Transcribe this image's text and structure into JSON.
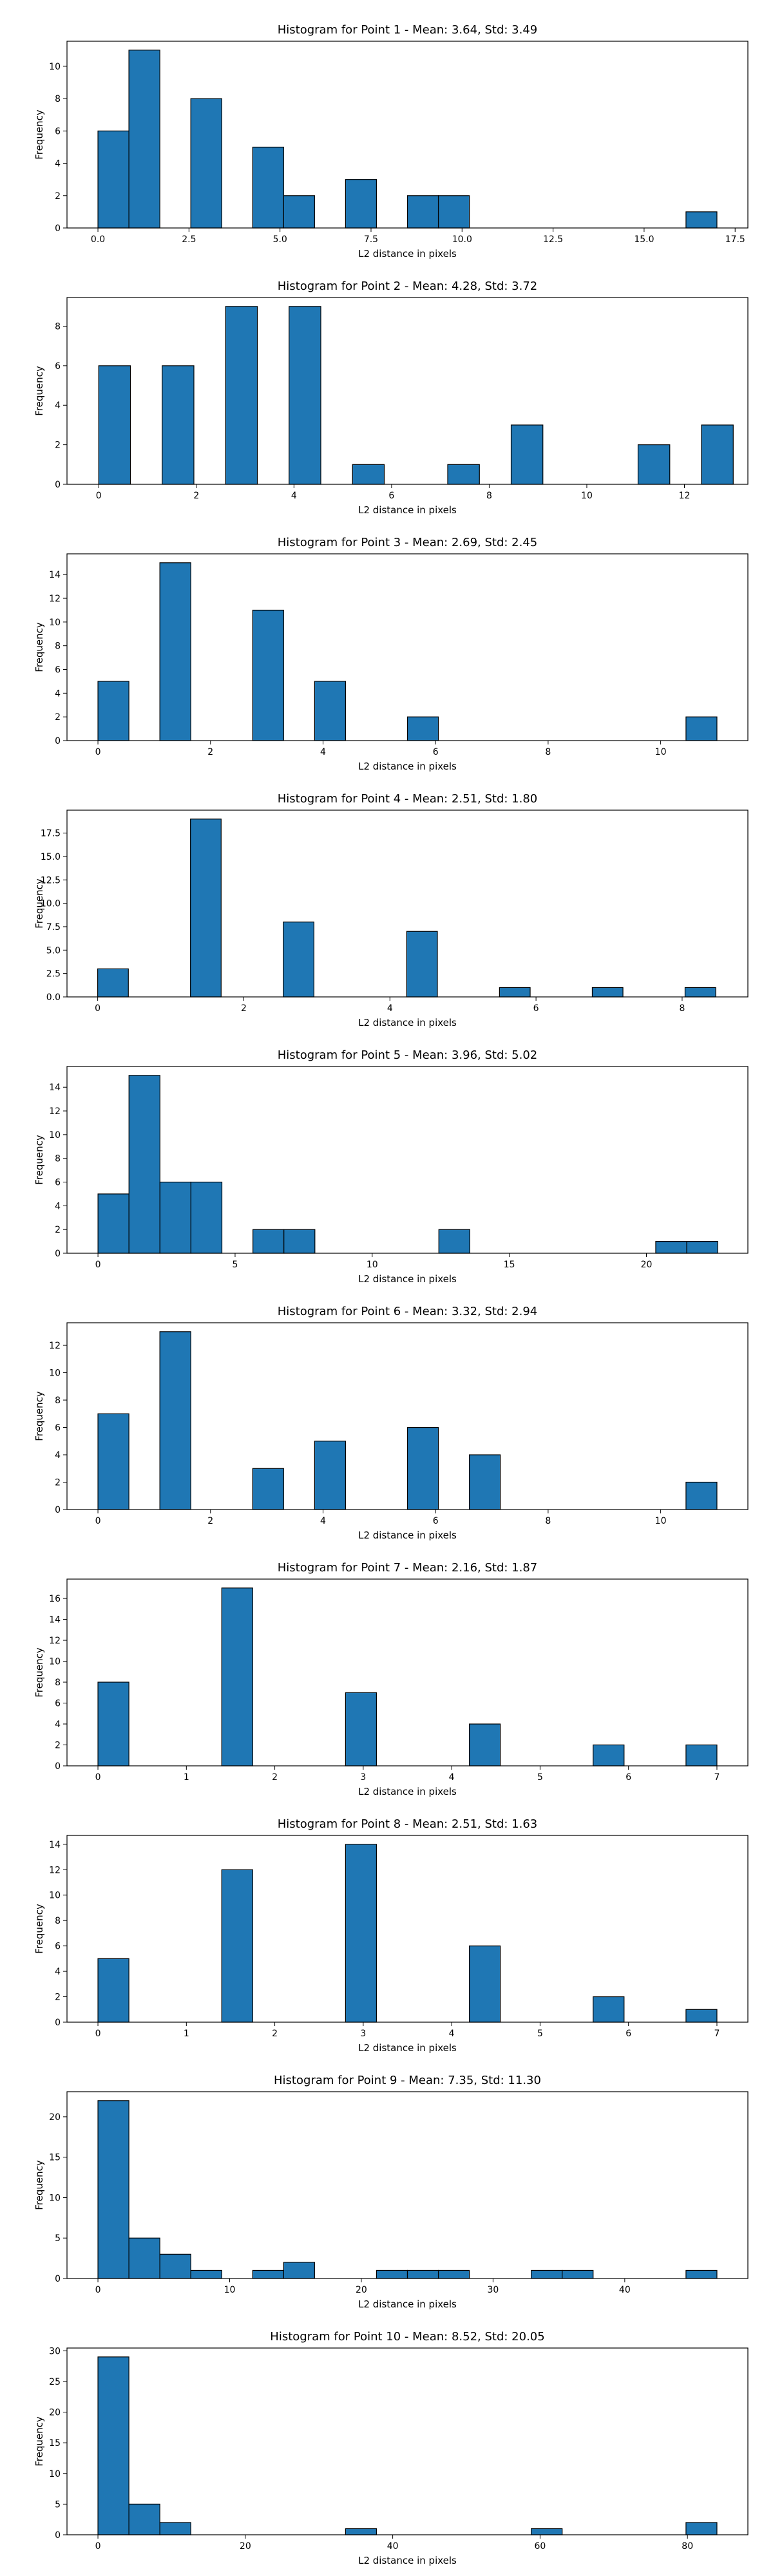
{
  "style": {
    "bar_color": "#1f77b4",
    "edge_color": "#000000",
    "background": "#ffffff"
  },
  "chart_data": [
    {
      "type": "bar",
      "title": "Histogram for Point 1 - Mean: 3.64, Std: 3.49",
      "xlabel": "L2 distance in pixels",
      "ylabel": "Frequency",
      "xlim": [
        -0.85,
        17.85
      ],
      "ylim": [
        0,
        11.55
      ],
      "xticks": [
        0,
        2.5,
        5,
        7.5,
        10,
        12.5,
        15,
        17.5
      ],
      "xtick_labels": [
        "0.0",
        "2.5",
        "5.0",
        "7.5",
        "10.0",
        "12.5",
        "15.0",
        "17.5"
      ],
      "yticks": [
        0,
        2,
        4,
        6,
        8,
        10
      ],
      "ytick_labels": [
        "0",
        "2",
        "4",
        "6",
        "8",
        "10"
      ],
      "bins": [
        {
          "x0": 0,
          "x1": 0.85,
          "count": 6
        },
        {
          "x0": 0.85,
          "x1": 1.7,
          "count": 11
        },
        {
          "x0": 2.55,
          "x1": 3.4,
          "count": 8
        },
        {
          "x0": 4.25,
          "x1": 5.1,
          "count": 5
        },
        {
          "x0": 5.1,
          "x1": 5.95,
          "count": 2
        },
        {
          "x0": 6.8,
          "x1": 7.65,
          "count": 3
        },
        {
          "x0": 8.5,
          "x1": 9.35,
          "count": 2
        },
        {
          "x0": 9.35,
          "x1": 10.2,
          "count": 2
        },
        {
          "x0": 16.15,
          "x1": 17.0,
          "count": 1
        }
      ]
    },
    {
      "type": "bar",
      "title": "Histogram for Point 2 - Mean: 4.28, Std: 3.72",
      "xlabel": "L2 distance in pixels",
      "ylabel": "Frequency",
      "xlim": [
        -0.65,
        13.3
      ],
      "ylim": [
        0,
        9.45
      ],
      "xticks": [
        0,
        2,
        4,
        6,
        8,
        10,
        12
      ],
      "xtick_labels": [
        "0",
        "2",
        "4",
        "6",
        "8",
        "10",
        "12"
      ],
      "yticks": [
        0,
        2,
        4,
        6,
        8
      ],
      "ytick_labels": [
        "0",
        "2",
        "4",
        "6",
        "8"
      ],
      "bins": [
        {
          "x0": 0,
          "x1": 0.65,
          "count": 6
        },
        {
          "x0": 1.3,
          "x1": 1.95,
          "count": 6
        },
        {
          "x0": 2.6,
          "x1": 3.25,
          "count": 9
        },
        {
          "x0": 3.9,
          "x1": 4.55,
          "count": 9
        },
        {
          "x0": 5.2,
          "x1": 5.85,
          "count": 1
        },
        {
          "x0": 7.15,
          "x1": 7.8,
          "count": 1
        },
        {
          "x0": 8.45,
          "x1": 9.1,
          "count": 3
        },
        {
          "x0": 11.05,
          "x1": 11.7,
          "count": 2
        },
        {
          "x0": 12.35,
          "x1": 13.0,
          "count": 3
        }
      ]
    },
    {
      "type": "bar",
      "title": "Histogram for Point 3 - Mean: 2.69, Std: 2.45",
      "xlabel": "L2 distance in pixels",
      "ylabel": "Frequency",
      "xlim": [
        -0.55,
        11.55
      ],
      "ylim": [
        0,
        15.75
      ],
      "xticks": [
        0,
        2,
        4,
        6,
        8,
        10
      ],
      "xtick_labels": [
        "0",
        "2",
        "4",
        "6",
        "8",
        "10"
      ],
      "yticks": [
        0,
        2,
        4,
        6,
        8,
        10,
        12,
        14
      ],
      "ytick_labels": [
        "0",
        "2",
        "4",
        "6",
        "8",
        "10",
        "12",
        "14"
      ],
      "bins": [
        {
          "x0": 0,
          "x1": 0.55,
          "count": 5
        },
        {
          "x0": 1.1,
          "x1": 1.65,
          "count": 15
        },
        {
          "x0": 2.75,
          "x1": 3.3,
          "count": 11
        },
        {
          "x0": 3.85,
          "x1": 4.4,
          "count": 5
        },
        {
          "x0": 5.5,
          "x1": 6.05,
          "count": 2
        },
        {
          "x0": 10.45,
          "x1": 11.0,
          "count": 2
        }
      ]
    },
    {
      "type": "bar",
      "title": "Histogram for Point 4 - Mean: 2.51, Std: 1.80",
      "xlabel": "L2 distance in pixels",
      "ylabel": "Frequency",
      "xlim": [
        -0.42,
        8.9
      ],
      "ylim": [
        0,
        19.95
      ],
      "xticks": [
        0,
        2,
        4,
        6,
        8
      ],
      "xtick_labels": [
        "0",
        "2",
        "4",
        "6",
        "8"
      ],
      "yticks": [
        0,
        2.5,
        5,
        7.5,
        10,
        12.5,
        15,
        17.5
      ],
      "ytick_labels": [
        "0.0",
        "2.5",
        "5.0",
        "7.5",
        "10.0",
        "12.5",
        "15.0",
        "17.5"
      ],
      "bins": [
        {
          "x0": 0,
          "x1": 0.42,
          "count": 3
        },
        {
          "x0": 1.27,
          "x1": 1.69,
          "count": 19
        },
        {
          "x0": 2.54,
          "x1": 2.96,
          "count": 8
        },
        {
          "x0": 4.23,
          "x1": 4.65,
          "count": 7
        },
        {
          "x0": 5.5,
          "x1": 5.92,
          "count": 1
        },
        {
          "x0": 6.77,
          "x1": 7.19,
          "count": 1
        },
        {
          "x0": 8.04,
          "x1": 8.46,
          "count": 1
        }
      ]
    },
    {
      "type": "bar",
      "title": "Histogram for Point 5 - Mean: 3.96, Std: 5.02",
      "xlabel": "L2 distance in pixels",
      "ylabel": "Frequency",
      "xlim": [
        -1.13,
        23.7
      ],
      "ylim": [
        0,
        15.75
      ],
      "xticks": [
        0,
        5,
        10,
        15,
        20
      ],
      "xtick_labels": [
        "0",
        "5",
        "10",
        "15",
        "20"
      ],
      "yticks": [
        0,
        2,
        4,
        6,
        8,
        10,
        12,
        14
      ],
      "ytick_labels": [
        "0",
        "2",
        "4",
        "6",
        "8",
        "10",
        "12",
        "14"
      ],
      "bins": [
        {
          "x0": 0,
          "x1": 1.13,
          "count": 5
        },
        {
          "x0": 1.13,
          "x1": 2.26,
          "count": 15
        },
        {
          "x0": 2.26,
          "x1": 3.39,
          "count": 6
        },
        {
          "x0": 3.39,
          "x1": 4.52,
          "count": 6
        },
        {
          "x0": 5.65,
          "x1": 6.78,
          "count": 2
        },
        {
          "x0": 6.78,
          "x1": 7.91,
          "count": 2
        },
        {
          "x0": 12.43,
          "x1": 13.56,
          "count": 2
        },
        {
          "x0": 20.34,
          "x1": 21.47,
          "count": 1
        },
        {
          "x0": 21.47,
          "x1": 22.6,
          "count": 1
        }
      ]
    },
    {
      "type": "bar",
      "title": "Histogram for Point 6 - Mean: 3.32, Std: 2.94",
      "xlabel": "L2 distance in pixels",
      "ylabel": "Frequency",
      "xlim": [
        -0.55,
        11.55
      ],
      "ylim": [
        0,
        13.65
      ],
      "xticks": [
        0,
        2,
        4,
        6,
        8,
        10
      ],
      "xtick_labels": [
        "0",
        "2",
        "4",
        "6",
        "8",
        "10"
      ],
      "yticks": [
        0,
        2,
        4,
        6,
        8,
        10,
        12
      ],
      "ytick_labels": [
        "0",
        "2",
        "4",
        "6",
        "8",
        "10",
        "12"
      ],
      "bins": [
        {
          "x0": 0,
          "x1": 0.55,
          "count": 7
        },
        {
          "x0": 1.1,
          "x1": 1.65,
          "count": 13
        },
        {
          "x0": 2.75,
          "x1": 3.3,
          "count": 3
        },
        {
          "x0": 3.85,
          "x1": 4.4,
          "count": 5
        },
        {
          "x0": 5.5,
          "x1": 6.05,
          "count": 6
        },
        {
          "x0": 6.6,
          "x1": 7.15,
          "count": 4
        },
        {
          "x0": 10.45,
          "x1": 11.0,
          "count": 2
        }
      ]
    },
    {
      "type": "bar",
      "title": "Histogram for Point 7 - Mean: 2.16, Std: 1.87",
      "xlabel": "L2 distance in pixels",
      "ylabel": "Frequency",
      "xlim": [
        -0.35,
        7.35
      ],
      "ylim": [
        0,
        17.85
      ],
      "xticks": [
        0,
        1,
        2,
        3,
        4,
        5,
        6,
        7
      ],
      "xtick_labels": [
        "0",
        "1",
        "2",
        "3",
        "4",
        "5",
        "6",
        "7"
      ],
      "yticks": [
        0,
        2,
        4,
        6,
        8,
        10,
        12,
        14,
        16
      ],
      "ytick_labels": [
        "0",
        "2",
        "4",
        "6",
        "8",
        "10",
        "12",
        "14",
        "16"
      ],
      "bins": [
        {
          "x0": 0,
          "x1": 0.35,
          "count": 8
        },
        {
          "x0": 1.4,
          "x1": 1.75,
          "count": 17
        },
        {
          "x0": 2.8,
          "x1": 3.15,
          "count": 7
        },
        {
          "x0": 4.2,
          "x1": 4.55,
          "count": 4
        },
        {
          "x0": 5.6,
          "x1": 5.95,
          "count": 2
        },
        {
          "x0": 6.65,
          "x1": 7.0,
          "count": 2
        }
      ]
    },
    {
      "type": "bar",
      "title": "Histogram for Point 8 - Mean: 2.51, Std: 1.63",
      "xlabel": "L2 distance in pixels",
      "ylabel": "Frequency",
      "xlim": [
        -0.35,
        7.35
      ],
      "ylim": [
        0,
        14.7
      ],
      "xticks": [
        0,
        1,
        2,
        3,
        4,
        5,
        6,
        7
      ],
      "xtick_labels": [
        "0",
        "1",
        "2",
        "3",
        "4",
        "5",
        "6",
        "7"
      ],
      "yticks": [
        0,
        2,
        4,
        6,
        8,
        10,
        12,
        14
      ],
      "ytick_labels": [
        "0",
        "2",
        "4",
        "6",
        "8",
        "10",
        "12",
        "14"
      ],
      "bins": [
        {
          "x0": 0,
          "x1": 0.35,
          "count": 5
        },
        {
          "x0": 1.4,
          "x1": 1.75,
          "count": 12
        },
        {
          "x0": 2.8,
          "x1": 3.15,
          "count": 14
        },
        {
          "x0": 4.2,
          "x1": 4.55,
          "count": 6
        },
        {
          "x0": 5.6,
          "x1": 5.95,
          "count": 2
        },
        {
          "x0": 6.65,
          "x1": 7.0,
          "count": 1
        }
      ]
    },
    {
      "type": "bar",
      "title": "Histogram for Point 9 - Mean: 7.35, Std: 11.30",
      "xlabel": "L2 distance in pixels",
      "ylabel": "Frequency",
      "xlim": [
        -2.35,
        49.35
      ],
      "ylim": [
        0,
        23.1
      ],
      "xticks": [
        0,
        10,
        20,
        30,
        40
      ],
      "xtick_labels": [
        "0",
        "10",
        "20",
        "30",
        "40"
      ],
      "yticks": [
        0,
        5,
        10,
        15,
        20
      ],
      "ytick_labels": [
        "0",
        "5",
        "10",
        "15",
        "20"
      ],
      "bins": [
        {
          "x0": 0,
          "x1": 2.35,
          "count": 22
        },
        {
          "x0": 2.35,
          "x1": 4.7,
          "count": 5
        },
        {
          "x0": 4.7,
          "x1": 7.05,
          "count": 3
        },
        {
          "x0": 7.05,
          "x1": 9.4,
          "count": 1
        },
        {
          "x0": 11.75,
          "x1": 14.1,
          "count": 1
        },
        {
          "x0": 14.1,
          "x1": 16.45,
          "count": 2
        },
        {
          "x0": 21.15,
          "x1": 23.5,
          "count": 1
        },
        {
          "x0": 23.5,
          "x1": 25.85,
          "count": 1
        },
        {
          "x0": 25.85,
          "x1": 28.2,
          "count": 1
        },
        {
          "x0": 32.9,
          "x1": 35.25,
          "count": 1
        },
        {
          "x0": 35.25,
          "x1": 37.6,
          "count": 1
        },
        {
          "x0": 44.65,
          "x1": 47.0,
          "count": 1
        }
      ]
    },
    {
      "type": "bar",
      "title": "Histogram for Point 10 - Mean: 8.52, Std: 20.05",
      "xlabel": "L2 distance in pixels",
      "ylabel": "Frequency",
      "xlim": [
        -4.2,
        88.2
      ],
      "ylim": [
        0,
        30.45
      ],
      "xticks": [
        0,
        20,
        40,
        60,
        80
      ],
      "xtick_labels": [
        "0",
        "20",
        "40",
        "60",
        "80"
      ],
      "yticks": [
        0,
        5,
        10,
        15,
        20,
        25,
        30
      ],
      "ytick_labels": [
        "0",
        "5",
        "10",
        "15",
        "20",
        "25",
        "30"
      ],
      "bins": [
        {
          "x0": 0,
          "x1": 4.2,
          "count": 29
        },
        {
          "x0": 4.2,
          "x1": 8.4,
          "count": 5
        },
        {
          "x0": 8.4,
          "x1": 12.6,
          "count": 2
        },
        {
          "x0": 33.6,
          "x1": 37.8,
          "count": 1
        },
        {
          "x0": 58.8,
          "x1": 63.0,
          "count": 1
        },
        {
          "x0": 79.8,
          "x1": 84.0,
          "count": 2
        }
      ]
    }
  ]
}
